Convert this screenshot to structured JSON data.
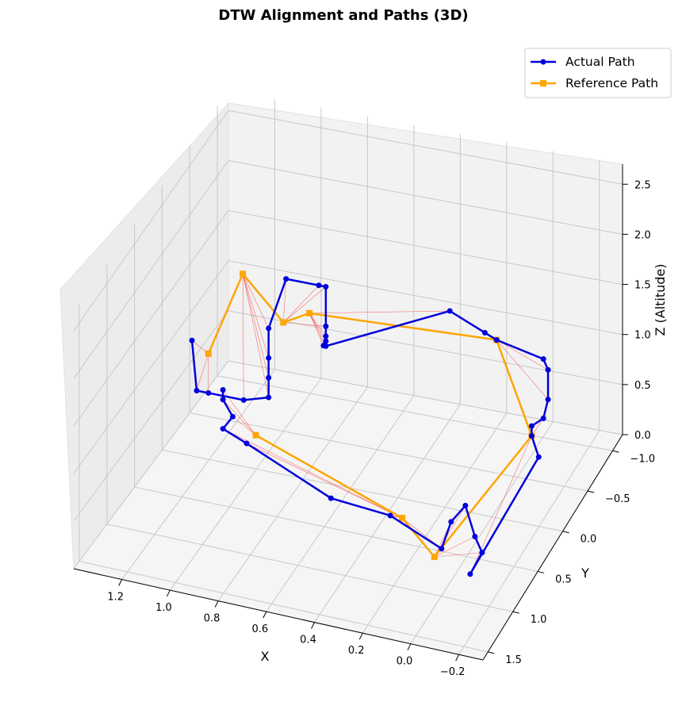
{
  "chart_data": {
    "type": "line",
    "title": "DTW Alignment and Paths (3D)",
    "xlabel": "X",
    "ylabel": "Y",
    "zlabel": "Z (Altitude)",
    "x_ticks": [
      "1.2",
      "1.0",
      "0.8",
      "0.6",
      "0.4",
      "0.2",
      "0.0",
      "−0.2"
    ],
    "y_ticks": [
      "−1.0",
      "−0.5",
      "0.0",
      "0.5",
      "1.0",
      "1.5"
    ],
    "z_ticks": [
      "0.0",
      "0.5",
      "1.0",
      "1.5",
      "2.0",
      "2.5"
    ],
    "legend": {
      "placement": "top-right"
    },
    "colors": {
      "actual": "#0000dd",
      "reference": "#ffa500",
      "alignment": "#ff0000"
    },
    "series": [
      {
        "name": "Actual Path",
        "marker": "circle",
        "points": [
          [
            1.32,
            -0.2,
            1.0
          ],
          [
            1.3,
            -0.2,
            0.5
          ],
          [
            1.25,
            -0.2,
            0.5
          ],
          [
            1.1,
            -0.2,
            0.5
          ],
          [
            1.04,
            -0.4,
            0.4
          ],
          [
            1.04,
            -0.4,
            0.6
          ],
          [
            1.04,
            -0.4,
            0.8
          ],
          [
            1.04,
            -0.4,
            1.1
          ],
          [
            1.0,
            -0.55,
            1.5
          ],
          [
            0.86,
            -0.55,
            1.5
          ],
          [
            0.83,
            -0.55,
            1.5
          ],
          [
            0.83,
            -0.55,
            1.1
          ],
          [
            0.83,
            -0.55,
            1.0
          ],
          [
            0.84,
            -0.55,
            0.9
          ],
          [
            0.83,
            -0.55,
            0.95
          ],
          [
            0.83,
            -0.55,
            0.9
          ],
          [
            0.3,
            -0.55,
            1.5
          ],
          [
            0.15,
            -0.55,
            1.35
          ],
          [
            0.1,
            -0.55,
            1.3
          ],
          [
            -0.1,
            -0.55,
            1.2
          ],
          [
            -0.12,
            -0.55,
            1.1
          ],
          [
            -0.12,
            -0.55,
            0.8
          ],
          [
            -0.1,
            -0.55,
            0.6
          ],
          [
            -0.05,
            -0.55,
            0.5
          ],
          [
            -0.05,
            -0.55,
            0.4
          ],
          [
            -0.08,
            -0.55,
            0.2
          ],
          [
            -0.1,
            0.9,
            0.2
          ],
          [
            -0.15,
            0.9,
            0.45
          ],
          [
            -0.12,
            0.9,
            0.6
          ],
          [
            -0.08,
            0.9,
            0.9
          ],
          [
            -0.02,
            0.9,
            0.7
          ],
          [
            0.02,
            0.9,
            0.4
          ],
          [
            0.3,
            0.6,
            0.35
          ],
          [
            0.55,
            0.6,
            0.4
          ],
          [
            0.95,
            0.4,
            0.6
          ],
          [
            1.05,
            0.4,
            0.7
          ],
          [
            1.02,
            0.35,
            0.8
          ],
          [
            1.05,
            0.4,
            1.0
          ],
          [
            1.05,
            0.4,
            1.1
          ]
        ]
      },
      {
        "name": "Reference Path",
        "marker": "square",
        "points": [
          [
            1.25,
            -0.2,
            0.9
          ],
          [
            1.15,
            -0.4,
            1.6
          ],
          [
            1.0,
            -0.5,
            1.1
          ],
          [
            0.9,
            -0.55,
            1.2
          ],
          [
            0.1,
            -0.55,
            1.3
          ],
          [
            -0.05,
            -0.55,
            0.4
          ],
          [
            0.05,
            0.9,
            0.3
          ],
          [
            0.25,
            0.6,
            0.35
          ],
          [
            0.9,
            0.45,
            0.75
          ]
        ]
      }
    ]
  }
}
